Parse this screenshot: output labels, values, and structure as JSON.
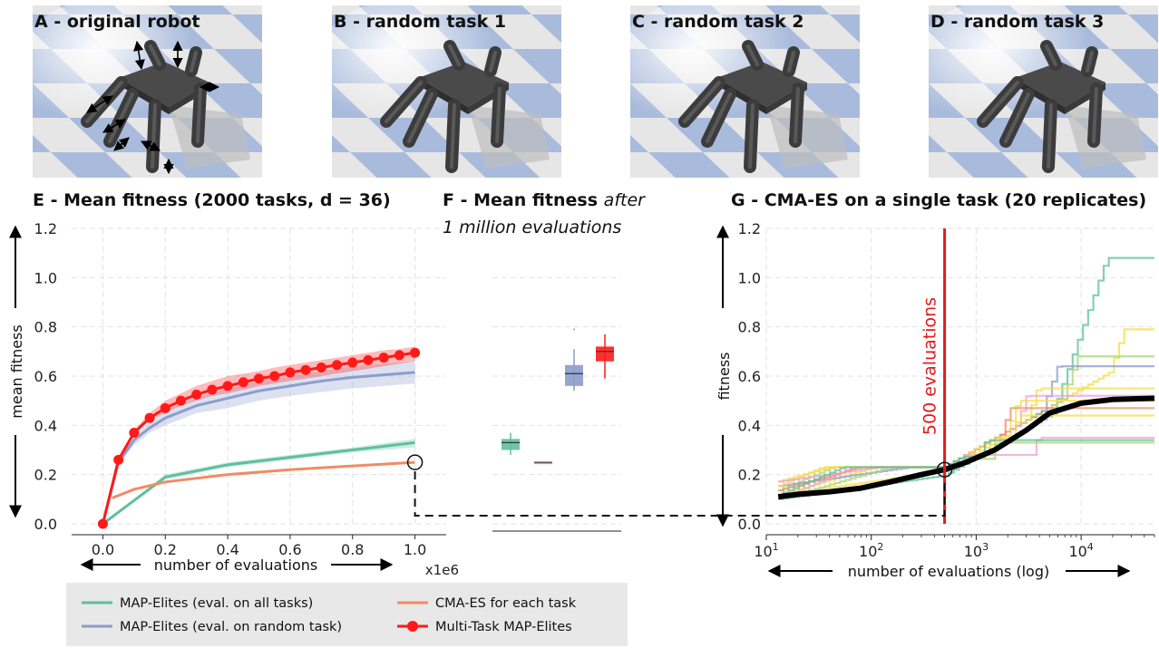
{
  "panels": [
    {
      "id": "A",
      "label": "A - original robot"
    },
    {
      "id": "B",
      "label": "B - random task 1"
    },
    {
      "id": "C",
      "label": "C - random task 2"
    },
    {
      "id": "D",
      "label": "D - random task 3"
    }
  ],
  "colors": {
    "map_elites_all": "#5fbf9f",
    "map_elites_random": "#8c9ccc",
    "cmaes": "#f08c64",
    "multitask": "#ff1a1a",
    "cmaes_500": "#e31a1c",
    "sky": "#d8d8d8",
    "floor_light": "#e6e6e6",
    "floor_blue": "#9db3d9",
    "robot": "#4a4a4a"
  },
  "legend": {
    "items": [
      {
        "label": "MAP-Elites (eval. on all tasks)",
        "color": "#5fbf9f",
        "marker": "line"
      },
      {
        "label": "MAP-Elites (eval. on random task)",
        "color": "#8c9ccc",
        "marker": "line"
      },
      {
        "label": "CMA-ES for each task",
        "color": "#f08c64",
        "marker": "line"
      },
      {
        "label": "Multi-Task MAP-Elites",
        "color": "#ff1a1a",
        "marker": "line-dot"
      }
    ]
  },
  "chart_data": [
    {
      "id": "E",
      "type": "line",
      "title": "E - Mean fitness (2000 tasks, d = 36)",
      "xlabel": "number of evaluations",
      "ylabel": "mean fitness",
      "x_offset_label": "x1e6",
      "xlim": [
        -0.1,
        1.1
      ],
      "ylim": [
        0,
        1.2
      ],
      "xticks": [
        0.0,
        0.2,
        0.4,
        0.6,
        0.8,
        1.0
      ],
      "xtick_labels": [
        "0.0",
        "0.2",
        "0.4",
        "0.6",
        "0.8",
        "1.0"
      ],
      "yticks": [
        0.0,
        0.2,
        0.4,
        0.6,
        0.8,
        1.0,
        1.2
      ],
      "ytick_labels": [
        "0.0",
        "0.2",
        "0.4",
        "0.6",
        "0.8",
        "1.0",
        "1.2"
      ],
      "grid": true,
      "series": [
        {
          "color": "#5fbf9f",
          "x": [
            0,
            0.2,
            0.4,
            0.6,
            0.8,
            1.0
          ],
          "y": [
            0,
            0.19,
            0.24,
            0.27,
            0.3,
            0.33
          ],
          "band": [
            [
              0,
              0
            ],
            [
              0.18,
              0.2
            ],
            [
              0.23,
              0.25
            ],
            [
              0.26,
              0.28
            ],
            [
              0.29,
              0.31
            ],
            [
              0.31,
              0.345
            ]
          ]
        },
        {
          "color": "#8c9ccc",
          "x": [
            0,
            0.05,
            0.1,
            0.15,
            0.2,
            0.3,
            0.4,
            0.5,
            0.6,
            0.7,
            0.8,
            0.9,
            1.0
          ],
          "y": [
            0,
            0.25,
            0.34,
            0.39,
            0.43,
            0.48,
            0.51,
            0.54,
            0.56,
            0.58,
            0.595,
            0.605,
            0.615
          ],
          "band": [
            [
              0,
              0
            ],
            [
              0.24,
              0.27
            ],
            [
              0.32,
              0.36
            ],
            [
              0.37,
              0.41
            ],
            [
              0.4,
              0.46
            ],
            [
              0.45,
              0.51
            ],
            [
              0.47,
              0.55
            ],
            [
              0.5,
              0.58
            ],
            [
              0.52,
              0.6
            ],
            [
              0.535,
              0.62
            ],
            [
              0.55,
              0.64
            ],
            [
              0.56,
              0.65
            ],
            [
              0.57,
              0.66
            ]
          ]
        },
        {
          "color": "#f08c64",
          "x": [
            0.03,
            0.1,
            0.2,
            0.4,
            0.6,
            0.8,
            1.0
          ],
          "y": [
            0.105,
            0.14,
            0.17,
            0.2,
            0.22,
            0.235,
            0.25
          ],
          "band": null
        },
        {
          "color": "#ff1a1a",
          "x": [
            0,
            0.05,
            0.1,
            0.15,
            0.2,
            0.25,
            0.3,
            0.35,
            0.4,
            0.45,
            0.5,
            0.55,
            0.6,
            0.65,
            0.7,
            0.75,
            0.8,
            0.85,
            0.9,
            0.95,
            1.0
          ],
          "y": [
            0,
            0.26,
            0.37,
            0.43,
            0.47,
            0.5,
            0.525,
            0.545,
            0.56,
            0.575,
            0.59,
            0.6,
            0.615,
            0.625,
            0.635,
            0.645,
            0.655,
            0.665,
            0.675,
            0.685,
            0.695
          ],
          "band": [
            [
              0,
              0
            ],
            [
              0.25,
              0.27
            ],
            [
              0.36,
              0.38
            ],
            [
              0.42,
              0.45
            ],
            [
              0.45,
              0.5
            ],
            [
              0.48,
              0.53
            ],
            [
              0.5,
              0.56
            ],
            [
              0.52,
              0.58
            ],
            [
              0.53,
              0.6
            ],
            [
              0.545,
              0.61
            ],
            [
              0.56,
              0.62
            ],
            [
              0.57,
              0.635
            ],
            [
              0.58,
              0.645
            ],
            [
              0.59,
              0.655
            ],
            [
              0.6,
              0.665
            ],
            [
              0.61,
              0.675
            ],
            [
              0.62,
              0.685
            ],
            [
              0.63,
              0.695
            ],
            [
              0.64,
              0.705
            ],
            [
              0.65,
              0.71
            ],
            [
              0.66,
              0.72
            ]
          ],
          "markers": true
        }
      ],
      "annotation_point": {
        "x": 1.0,
        "y": 0.25
      }
    },
    {
      "id": "F",
      "type": "box",
      "title_plain": "F - Mean fitness ",
      "title_italic_1": "after",
      "title_italic_2": "1 million evaluations",
      "ylim": [
        0,
        1.2
      ],
      "boxes": [
        {
          "color": "#5fbf9f",
          "q1": 0.3,
          "median": 0.33,
          "q3": 0.345,
          "whisker_low": 0.28,
          "whisker_high": 0.37
        },
        {
          "color": "#f08c64",
          "q1": 0.25,
          "median": 0.25,
          "q3": 0.25,
          "whisker_low": 0.25,
          "whisker_high": 0.25
        },
        {
          "color": "#8c9ccc",
          "q1": 0.56,
          "median": 0.61,
          "q3": 0.645,
          "whisker_low": 0.54,
          "whisker_high": 0.71,
          "outlier": 0.79
        },
        {
          "color": "#ff1a1a",
          "q1": 0.66,
          "median": 0.7,
          "q3": 0.72,
          "whisker_low": 0.59,
          "whisker_high": 0.77
        }
      ]
    },
    {
      "id": "G",
      "type": "line",
      "title": "G - CMA-ES on a single task (20 replicates)",
      "xlabel": "number of evaluations (log)",
      "ylabel": "fitness",
      "xscale": "log",
      "xlim": [
        10,
        50000
      ],
      "ylim": [
        0,
        1.2
      ],
      "xtick_values": [
        10,
        100,
        1000,
        10000
      ],
      "yticks": [
        0.0,
        0.2,
        0.4,
        0.6,
        0.8,
        1.0,
        1.2
      ],
      "ytick_labels": [
        "0.0",
        "0.2",
        "0.4",
        "0.6",
        "0.8",
        "1.0",
        "1.2"
      ],
      "grid": true,
      "vline": {
        "x": 500,
        "label": "500 evaluations",
        "color": "#e31a1c"
      },
      "annotation_point": {
        "x": 500,
        "y": 0.22
      },
      "mean_series": {
        "x": [
          13,
          20,
          40,
          80,
          150,
          300,
          500,
          800,
          1500,
          3000,
          5000,
          10000,
          20000,
          50000
        ],
        "y": [
          0.11,
          0.12,
          0.13,
          0.145,
          0.17,
          0.2,
          0.22,
          0.25,
          0.3,
          0.38,
          0.45,
          0.49,
          0.505,
          0.51
        ]
      },
      "replicates": [
        {
          "color": "#5fbf9f",
          "final": 1.08,
          "jump": 5500
        },
        {
          "color": "#f7dc4a",
          "final": 0.79,
          "jump": 20000
        },
        {
          "color": "#a8d672",
          "final": 0.68,
          "jump": 7000
        },
        {
          "color": "#8c9ccc",
          "final": 0.64,
          "jump": 4500
        },
        {
          "color": "#f7dc4a",
          "final": 0.55,
          "jump": 3000
        },
        {
          "color": "#f0a0d0",
          "final": 0.52,
          "jump": 2500
        },
        {
          "color": "#f7dc4a",
          "final": 0.5,
          "jump": 2000
        },
        {
          "color": "#f08c64",
          "final": 0.47,
          "jump": 1800
        },
        {
          "color": "#f7dc4a",
          "final": 0.44,
          "jump": 2200
        },
        {
          "color": "#f0a0d0",
          "final": 0.35,
          "jump": 3500
        },
        {
          "color": "#a8d672",
          "final": 0.33,
          "jump": 1500
        },
        {
          "color": "#5fbf9f",
          "final": 0.34,
          "jump": 1200
        }
      ]
    }
  ]
}
